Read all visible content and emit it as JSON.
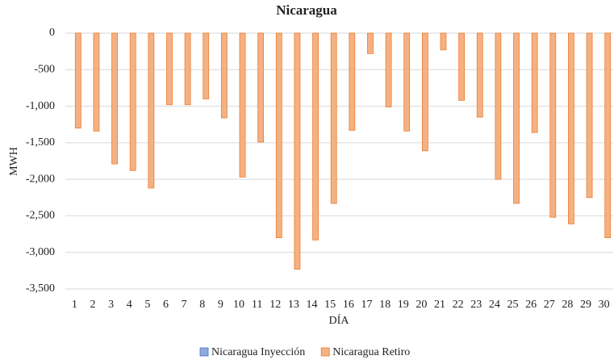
{
  "chart_data": {
    "type": "bar",
    "title": "Nicaragua",
    "x_label": "DÍA",
    "y_label": "MWH",
    "categories": [
      "1",
      "2",
      "3",
      "4",
      "5",
      "6",
      "7",
      "8",
      "9",
      "10",
      "11",
      "12",
      "13",
      "14",
      "15",
      "16",
      "17",
      "18",
      "19",
      "20",
      "21",
      "22",
      "23",
      "24",
      "25",
      "26",
      "27",
      "28",
      "29",
      "30"
    ],
    "series": [
      {
        "name": "Nicaragua Inyección",
        "color": "#8faadc",
        "values": [
          0,
          0,
          0,
          0,
          0,
          0,
          0,
          0,
          0,
          0,
          0,
          0,
          0,
          0,
          0,
          0,
          0,
          0,
          0,
          0,
          0,
          0,
          0,
          0,
          0,
          0,
          0,
          0,
          0,
          0
        ]
      },
      {
        "name": "Nicaragua Retiro",
        "color": "#f4b183",
        "values": [
          -1300,
          -1340,
          -1790,
          -1880,
          -2120,
          -980,
          -980,
          -900,
          -1160,
          -1970,
          -1490,
          -2800,
          -3230,
          -2830,
          -2330,
          -1330,
          -280,
          -1010,
          -1340,
          -1610,
          -230,
          -920,
          -1150,
          -2000,
          -2330,
          -1360,
          -2520,
          -2610,
          -2250,
          -2800
        ]
      }
    ],
    "ylim": [
      -3500,
      0
    ],
    "yticks": [
      0,
      -500,
      {
        "value": -1000,
        "label": "-1,000"
      },
      {
        "value": -1500,
        "label": "-1,500"
      },
      {
        "value": -2000,
        "label": "-2,000"
      },
      {
        "value": -2500,
        "label": "-2,500"
      },
      {
        "value": -3000,
        "label": "-3,000"
      },
      {
        "value": -3500,
        "label": "-3,500"
      }
    ],
    "grid": true,
    "legend": "bottom"
  }
}
